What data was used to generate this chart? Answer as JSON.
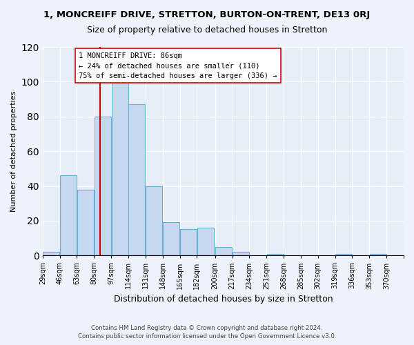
{
  "title": "1, MONCREIFF DRIVE, STRETTON, BURTON-ON-TRENT, DE13 0RJ",
  "subtitle": "Size of property relative to detached houses in Stretton",
  "xlabel": "Distribution of detached houses by size in Stretton",
  "ylabel": "Number of detached properties",
  "bar_values": [
    2,
    46,
    38,
    80,
    100,
    87,
    40,
    19,
    15,
    16,
    5,
    2,
    0,
    1,
    0,
    0,
    0,
    1,
    0,
    1
  ],
  "bin_labels": [
    "29sqm",
    "46sqm",
    "63sqm",
    "80sqm",
    "97sqm",
    "114sqm",
    "131sqm",
    "148sqm",
    "165sqm",
    "182sqm",
    "200sqm",
    "217sqm",
    "234sqm",
    "251sqm",
    "268sqm",
    "285sqm",
    "302sqm",
    "319sqm",
    "336sqm",
    "353sqm",
    "370sqm"
  ],
  "bin_edges": [
    29,
    46,
    63,
    80,
    97,
    114,
    131,
    148,
    165,
    182,
    200,
    217,
    234,
    251,
    268,
    285,
    302,
    319,
    336,
    353,
    370
  ],
  "bar_color": "#c5d8f0",
  "bar_edge_color": "#6aaed6",
  "property_line_x": 86,
  "property_line_color": "#cc0000",
  "annotation_title": "1 MONCREIFF DRIVE: 86sqm",
  "annotation_line1": "← 24% of detached houses are smaller (110)",
  "annotation_line2": "75% of semi-detached houses are larger (336) →",
  "annotation_box_color": "#ffffff",
  "annotation_box_edge": "#cc0000",
  "ylim": [
    0,
    120
  ],
  "yticks": [
    0,
    20,
    40,
    60,
    80,
    100,
    120
  ],
  "footer_line1": "Contains HM Land Registry data © Crown copyright and database right 2024.",
  "footer_line2": "Contains public sector information licensed under the Open Government Licence v3.0.",
  "bg_color": "#eef2fa",
  "plot_bg_color": "#e8eef8"
}
